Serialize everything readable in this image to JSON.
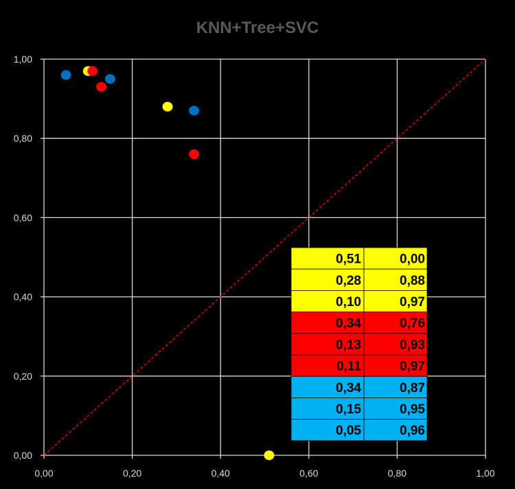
{
  "chart_data": {
    "type": "scatter",
    "title": "KNN+Tree+SVC",
    "xlabel": "",
    "ylabel": "",
    "xlim": [
      0,
      1
    ],
    "ylim": [
      0,
      1
    ],
    "grid": true,
    "x_ticks": [
      "0,00",
      "0,20",
      "0,40",
      "0,60",
      "0,80",
      "1,00"
    ],
    "y_ticks": [
      "0,00",
      "0,20",
      "0,40",
      "0,60",
      "0,80",
      "1,00"
    ],
    "diagonal": {
      "from": [
        0,
        0
      ],
      "to": [
        1,
        1
      ],
      "color": "#ff0000",
      "style": "dashed"
    },
    "series": [
      {
        "color": "#ffff00",
        "points": [
          {
            "x": 0.51,
            "y": 0.0
          },
          {
            "x": 0.28,
            "y": 0.88
          },
          {
            "x": 0.1,
            "y": 0.97
          }
        ]
      },
      {
        "color": "#ff0000",
        "points": [
          {
            "x": 0.34,
            "y": 0.76
          },
          {
            "x": 0.13,
            "y": 0.93
          },
          {
            "x": 0.11,
            "y": 0.97
          }
        ]
      },
      {
        "color": "#0070c0",
        "points": [
          {
            "x": 0.34,
            "y": 0.87
          },
          {
            "x": 0.15,
            "y": 0.95
          },
          {
            "x": 0.05,
            "y": 0.96
          }
        ]
      }
    ],
    "table": {
      "rows": [
        {
          "a": "0,51",
          "b": "0,00",
          "color": "#ffff00"
        },
        {
          "a": "0,28",
          "b": "0,88",
          "color": "#ffff00"
        },
        {
          "a": "0,10",
          "b": "0,97",
          "color": "#ffff00"
        },
        {
          "a": "0,34",
          "b": "0,76",
          "color": "#ff0000"
        },
        {
          "a": "0,13",
          "b": "0,93",
          "color": "#ff0000"
        },
        {
          "a": "0,11",
          "b": "0,97",
          "color": "#ff0000"
        },
        {
          "a": "0,34",
          "b": "0,87",
          "color": "#00b0f0"
        },
        {
          "a": "0,15",
          "b": "0,95",
          "color": "#00b0f0"
        },
        {
          "a": "0,05",
          "b": "0,96",
          "color": "#00b0f0"
        }
      ]
    }
  }
}
